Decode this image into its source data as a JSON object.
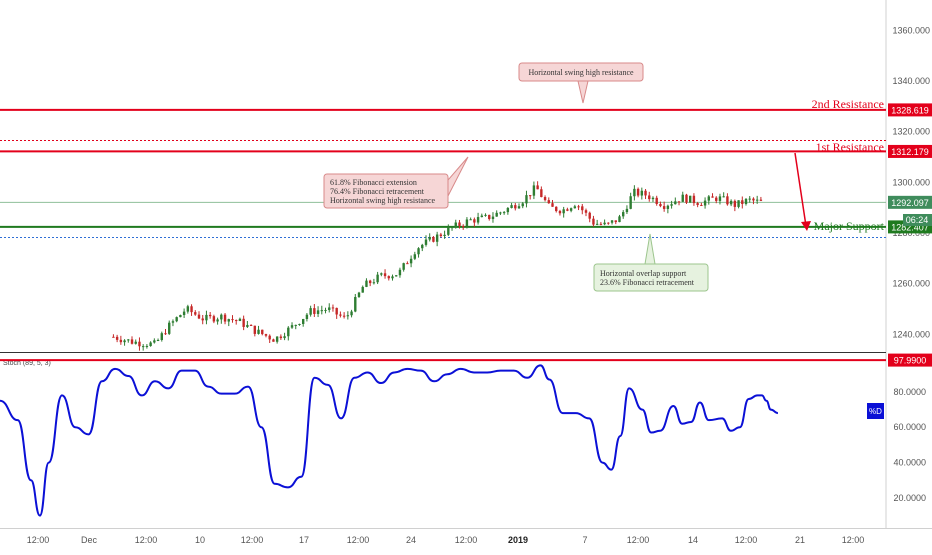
{
  "chart_data": [
    {
      "type": "candlestick",
      "panel": "price",
      "title": "",
      "xlabel": "",
      "ylabel": "",
      "ylim": [
        1233,
        1372
      ],
      "y_ticks": [
        "1360.000",
        "1340.000",
        "1320.000",
        "1300.000",
        "1280.000",
        "1260.000",
        "1240.000"
      ],
      "x_ticks": [
        "12:00",
        "Dec",
        "12:00",
        "10",
        "12:00",
        "17",
        "12:00",
        "24",
        "12:00",
        "2019",
        "7",
        "12:00",
        "14",
        "12:00",
        "21",
        "12:00"
      ],
      "grid": false,
      "price_points": [
        {
          "t": 0.128,
          "y": 1239
        },
        {
          "t": 0.15,
          "y": 1237
        },
        {
          "t": 0.175,
          "y": 1236
        },
        {
          "t": 0.19,
          "y": 1243
        },
        {
          "t": 0.21,
          "y": 1250
        },
        {
          "t": 0.23,
          "y": 1246
        },
        {
          "t": 0.25,
          "y": 1247
        },
        {
          "t": 0.27,
          "y": 1245
        },
        {
          "t": 0.29,
          "y": 1241
        },
        {
          "t": 0.31,
          "y": 1238
        },
        {
          "t": 0.33,
          "y": 1243
        },
        {
          "t": 0.35,
          "y": 1249
        },
        {
          "t": 0.37,
          "y": 1250
        },
        {
          "t": 0.39,
          "y": 1246
        },
        {
          "t": 0.41,
          "y": 1259
        },
        {
          "t": 0.43,
          "y": 1263
        },
        {
          "t": 0.45,
          "y": 1264
        },
        {
          "t": 0.47,
          "y": 1274
        },
        {
          "t": 0.49,
          "y": 1278
        },
        {
          "t": 0.51,
          "y": 1282
        },
        {
          "t": 0.53,
          "y": 1285
        },
        {
          "t": 0.55,
          "y": 1286
        },
        {
          "t": 0.57,
          "y": 1289
        },
        {
          "t": 0.59,
          "y": 1293
        },
        {
          "t": 0.605,
          "y": 1298
        },
        {
          "t": 0.62,
          "y": 1290
        },
        {
          "t": 0.635,
          "y": 1289
        },
        {
          "t": 0.65,
          "y": 1292
        },
        {
          "t": 0.67,
          "y": 1284
        },
        {
          "t": 0.685,
          "y": 1283
        },
        {
          "t": 0.7,
          "y": 1286
        },
        {
          "t": 0.715,
          "y": 1296
        },
        {
          "t": 0.73,
          "y": 1295
        },
        {
          "t": 0.75,
          "y": 1291
        },
        {
          "t": 0.77,
          "y": 1294
        },
        {
          "t": 0.79,
          "y": 1292
        },
        {
          "t": 0.81,
          "y": 1294
        },
        {
          "t": 0.83,
          "y": 1291
        },
        {
          "t": 0.845,
          "y": 1293
        },
        {
          "t": 0.86,
          "y": 1292
        }
      ],
      "levels": [
        {
          "label": "2nd Resistance",
          "value": "1328.619",
          "y": 1328.6,
          "color": "#e3001b",
          "style": "solid",
          "tag_color": "#e3001b"
        },
        {
          "label": "",
          "value": "",
          "y": 1316.5,
          "color": "#e3001b",
          "style": "dotted",
          "tag_color": ""
        },
        {
          "label": "1st Resistance",
          "value": "1312.179",
          "y": 1312.2,
          "color": "#e3001b",
          "style": "solid",
          "tag_color": "#e3001b"
        },
        {
          "label": "",
          "value": "1292.097",
          "y": 1292.1,
          "color": "#8fbf9a",
          "style": "thin",
          "tag_color": "#3f8c5c"
        },
        {
          "label": "Major Support",
          "value": "1282.407",
          "y": 1282.4,
          "color": "#1f7a1f",
          "style": "solid",
          "tag_color": "#1f7a1f"
        },
        {
          "label": "",
          "value": "",
          "y": 1278.2,
          "color": "#2f6fd6",
          "style": "dotted",
          "tag_color": ""
        }
      ],
      "countdown": "06:24"
    },
    {
      "type": "line",
      "panel": "oscillator",
      "indicator_label": "Stoch (89, 5, 3)",
      "ylim": [
        3,
        102
      ],
      "y_ticks": [
        "80.0000",
        "60.0000",
        "40.0000",
        "20.0000"
      ],
      "series": [
        {
          "name": "%D",
          "color": "#0b10d6",
          "values": [
            [
              0.0,
              75
            ],
            [
              0.02,
              64
            ],
            [
              0.035,
              30
            ],
            [
              0.045,
              10
            ],
            [
              0.055,
              40
            ],
            [
              0.07,
              78
            ],
            [
              0.085,
              60
            ],
            [
              0.1,
              56
            ],
            [
              0.115,
              86
            ],
            [
              0.13,
              93
            ],
            [
              0.145,
              89
            ],
            [
              0.16,
              78
            ],
            [
              0.175,
              86
            ],
            [
              0.19,
              82
            ],
            [
              0.205,
              92
            ],
            [
              0.22,
              92
            ],
            [
              0.235,
              83
            ],
            [
              0.25,
              79
            ],
            [
              0.265,
              79
            ],
            [
              0.28,
              83
            ],
            [
              0.295,
              60
            ],
            [
              0.31,
              28
            ],
            [
              0.325,
              26
            ],
            [
              0.34,
              32
            ],
            [
              0.355,
              88
            ],
            [
              0.37,
              84
            ],
            [
              0.385,
              65
            ],
            [
              0.4,
              88
            ],
            [
              0.415,
              91
            ],
            [
              0.43,
              85
            ],
            [
              0.445,
              91
            ],
            [
              0.46,
              93
            ],
            [
              0.475,
              92
            ],
            [
              0.49,
              86
            ],
            [
              0.505,
              90
            ],
            [
              0.52,
              93
            ],
            [
              0.535,
              91
            ],
            [
              0.55,
              91
            ],
            [
              0.565,
              92
            ],
            [
              0.58,
              92
            ],
            [
              0.595,
              88
            ],
            [
              0.61,
              95
            ],
            [
              0.62,
              87
            ],
            [
              0.635,
              68
            ],
            [
              0.65,
              68
            ],
            [
              0.665,
              65
            ],
            [
              0.68,
              40
            ],
            [
              0.69,
              36
            ],
            [
              0.7,
              55
            ],
            [
              0.71,
              82
            ],
            [
              0.725,
              70
            ],
            [
              0.735,
              57
            ],
            [
              0.745,
              58
            ],
            [
              0.76,
              72
            ],
            [
              0.77,
              62
            ],
            [
              0.78,
              63
            ],
            [
              0.79,
              74
            ],
            [
              0.8,
              64
            ],
            [
              0.815,
              65
            ],
            [
              0.825,
              58
            ],
            [
              0.835,
              60
            ],
            [
              0.845,
              76
            ],
            [
              0.855,
              78
            ],
            [
              0.86,
              78
            ],
            [
              0.865,
              75
            ],
            [
              0.87,
              70
            ],
            [
              0.878,
              68
            ]
          ]
        }
      ],
      "levels": [
        {
          "value": "97.9900",
          "y": 97.99,
          "color": "#e3001b"
        }
      ]
    }
  ],
  "annotations": [
    {
      "lines": [
        "Horizontal swing high resistance"
      ],
      "bg": "#f6d6d6",
      "border": "#d88a8a"
    },
    {
      "lines": [
        "61.8% Fibonacci extension",
        "76.4% Fibonacci retracement",
        "Horizontal swing high resistance"
      ],
      "bg": "#f6d6d6",
      "border": "#d88a8a"
    },
    {
      "lines": [
        "Horizontal overlap support",
        "23.6% Fibonacci retracement"
      ],
      "bg": "#e6f2df",
      "border": "#9cc58d"
    }
  ],
  "colors": {
    "resistance": "#e3001b",
    "support": "#1f7a1f",
    "up_candle": "#2e7d32",
    "down_candle": "#c62828",
    "stoch": "#0b10d6",
    "axis_text": "#555555"
  }
}
